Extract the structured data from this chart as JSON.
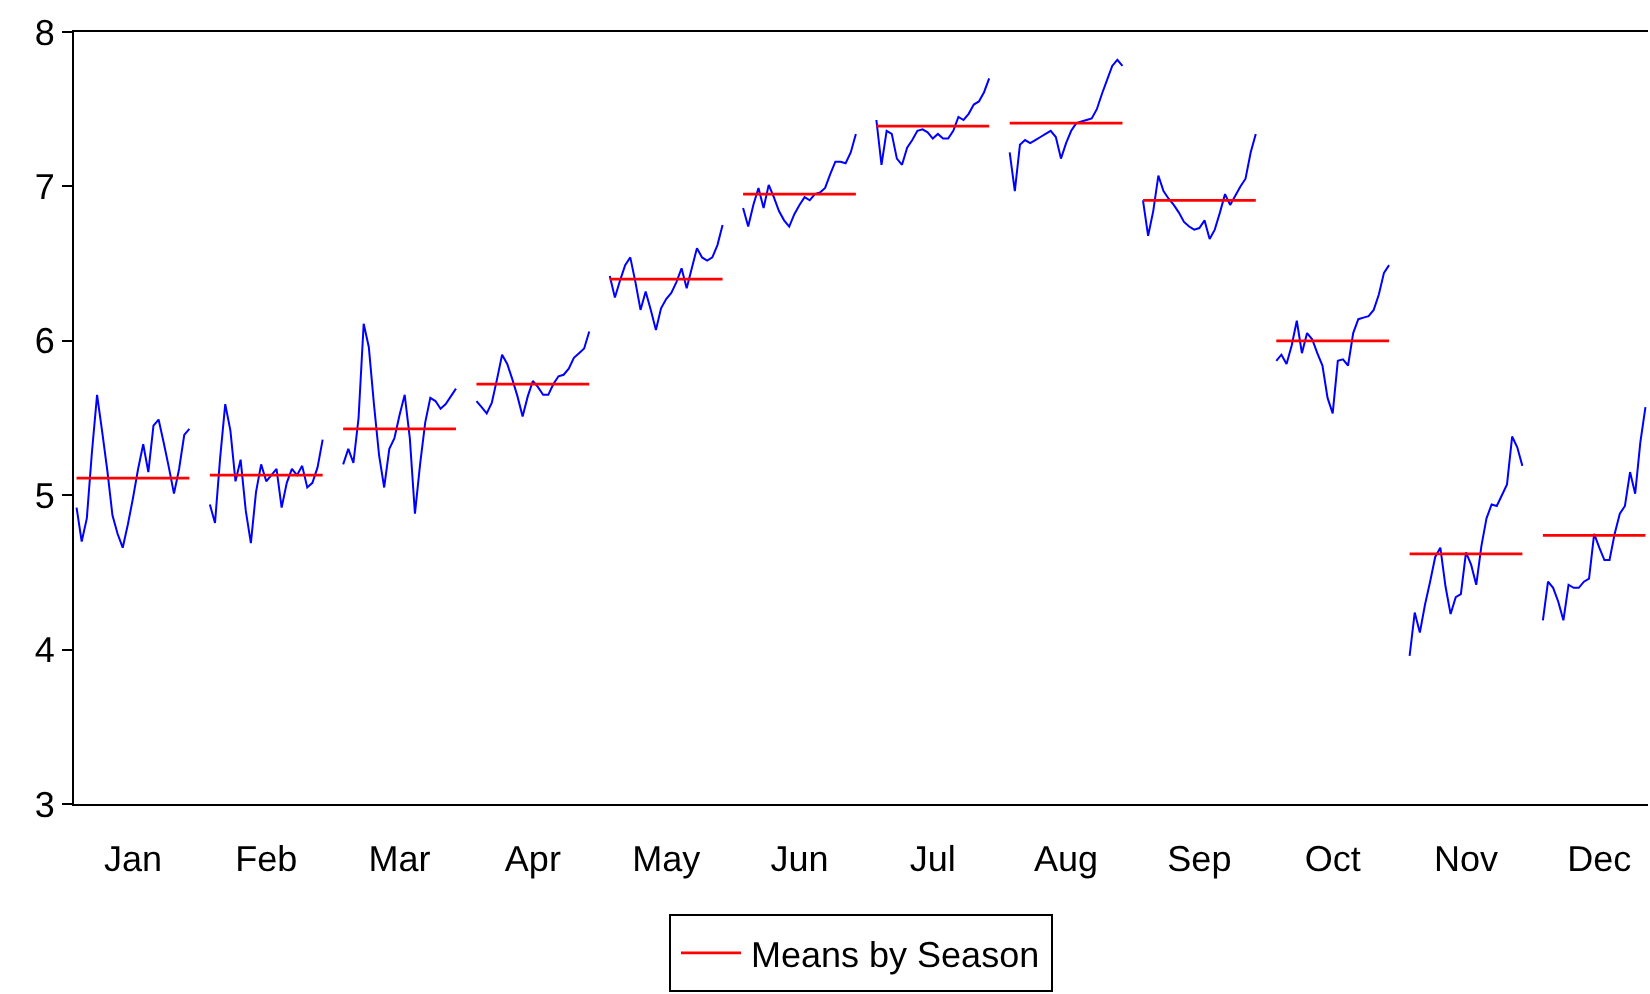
{
  "chart_data": {
    "type": "line",
    "categories": [
      null,
      null,
      null,
      null,
      null,
      null,
      null,
      null,
      null,
      null,
      null,
      "Jan",
      null,
      null,
      null,
      null,
      null,
      null,
      null,
      null,
      null,
      null,
      null,
      null,
      null,
      null,
      null,
      null,
      null,
      null,
      null,
      null,
      null,
      null,
      null,
      null,
      null,
      "Feb",
      null,
      null,
      null,
      null,
      null,
      null,
      null,
      null,
      null,
      null,
      null,
      null,
      null,
      null,
      null,
      null,
      null,
      null,
      null,
      null,
      null,
      null,
      null,
      null,
      null,
      "Mar",
      null,
      null,
      null,
      null,
      null,
      null,
      null,
      null,
      null,
      null,
      null,
      null,
      null,
      null,
      null,
      null,
      null,
      null,
      null,
      null,
      null,
      null,
      null,
      null,
      null,
      "Apr",
      null,
      null,
      null,
      null,
      null,
      null,
      null,
      null,
      null,
      null,
      null,
      null,
      null,
      null,
      null,
      null,
      null,
      null,
      null,
      null,
      null,
      null,
      null,
      null,
      null,
      "May",
      null,
      null,
      null,
      null,
      null,
      null,
      null,
      null,
      null,
      null,
      null,
      null,
      null,
      null,
      null,
      null,
      null,
      null,
      null,
      null,
      null,
      null,
      null,
      null,
      null,
      "Jun",
      null,
      null,
      null,
      null,
      null,
      null,
      null,
      null,
      null,
      null,
      null,
      null,
      null,
      null,
      null,
      null,
      null,
      null,
      null,
      null,
      null,
      null,
      null,
      null,
      null,
      "Jul",
      null,
      null,
      null,
      null,
      null,
      null,
      null,
      null,
      null,
      null,
      null,
      null,
      null,
      null,
      null,
      null,
      null,
      null,
      null,
      null,
      null,
      null,
      null,
      null,
      null,
      "Aug",
      null,
      null,
      null,
      null,
      null,
      null,
      null,
      null,
      null,
      null,
      null,
      null,
      null,
      null,
      null,
      null,
      null,
      null,
      null,
      null,
      null,
      null,
      null,
      null,
      null,
      "Sep",
      null,
      null,
      null,
      null,
      null,
      null,
      null,
      null,
      null,
      null,
      null,
      null,
      null,
      null,
      null,
      null,
      null,
      null,
      null,
      null,
      null,
      null,
      null,
      null,
      null,
      "Oct",
      null,
      null,
      null,
      null,
      null,
      null,
      null,
      null,
      null,
      null,
      null,
      null,
      null,
      null,
      null,
      null,
      null,
      null,
      null,
      null,
      null,
      null,
      null,
      null,
      null,
      "Nov",
      null,
      null,
      null,
      null,
      null,
      null,
      null,
      null,
      null,
      null,
      null,
      null,
      null,
      null,
      null,
      null,
      null,
      null,
      null,
      null,
      null,
      null,
      null,
      null,
      null,
      "Dec",
      null,
      null,
      null,
      null,
      null,
      null,
      null,
      null,
      null
    ],
    "ylim": [
      3,
      8
    ],
    "yticks": [
      3,
      4,
      5,
      6,
      7,
      8
    ],
    "legend": "bottom",
    "series": [
      {
        "color": "#0000ff",
        "values": [
          4.92,
          4.7,
          4.85,
          5.28,
          5.65,
          5.41,
          5.16,
          4.87,
          4.75,
          4.66,
          4.81,
          4.98,
          5.17,
          5.33,
          5.15,
          5.45,
          5.49,
          5.34,
          5.18,
          5.01,
          5.17,
          5.39,
          5.43,
          null,
          null,
          null,
          4.94,
          4.82,
          5.24,
          5.59,
          5.42,
          5.09,
          5.23,
          4.9,
          4.69,
          5.02,
          5.2,
          5.09,
          5.13,
          5.17,
          4.92,
          5.08,
          5.17,
          5.13,
          5.19,
          5.05,
          5.08,
          5.18,
          5.36,
          null,
          null,
          null,
          5.2,
          5.3,
          5.21,
          5.5,
          6.11,
          5.96,
          5.59,
          5.26,
          5.05,
          5.3,
          5.37,
          5.52,
          5.65,
          5.37,
          4.88,
          5.2,
          5.47,
          5.63,
          5.61,
          5.56,
          5.59,
          5.64,
          5.69,
          null,
          null,
          null,
          5.61,
          5.57,
          5.53,
          5.6,
          5.75,
          5.91,
          5.85,
          5.75,
          5.64,
          5.51,
          5.64,
          5.74,
          5.7,
          5.65,
          5.65,
          5.72,
          5.77,
          5.78,
          5.82,
          5.89,
          5.92,
          5.95,
          6.06,
          null,
          null,
          null,
          6.42,
          6.28,
          6.39,
          6.49,
          6.54,
          6.38,
          6.2,
          6.32,
          6.2,
          6.07,
          6.21,
          6.27,
          6.31,
          6.38,
          6.47,
          6.34,
          6.47,
          6.6,
          6.54,
          6.52,
          6.54,
          6.62,
          6.75,
          null,
          null,
          null,
          6.86,
          6.74,
          6.88,
          6.99,
          6.86,
          7.01,
          6.93,
          6.84,
          6.78,
          6.74,
          6.82,
          6.88,
          6.93,
          6.91,
          6.95,
          6.96,
          6.99,
          7.08,
          7.16,
          7.16,
          7.15,
          7.22,
          7.34,
          null,
          null,
          null,
          7.43,
          7.14,
          7.36,
          7.34,
          7.18,
          7.14,
          7.25,
          7.3,
          7.36,
          7.37,
          7.35,
          7.31,
          7.34,
          7.31,
          7.31,
          7.36,
          7.45,
          7.43,
          7.47,
          7.53,
          7.55,
          7.61,
          7.7,
          null,
          null,
          null,
          7.22,
          6.97,
          7.27,
          7.3,
          7.28,
          7.3,
          7.32,
          7.34,
          7.36,
          7.32,
          7.18,
          7.28,
          7.36,
          7.41,
          7.42,
          7.43,
          7.44,
          7.5,
          7.6,
          7.69,
          7.78,
          7.82,
          7.78,
          null,
          null,
          null,
          6.91,
          6.68,
          6.84,
          7.07,
          6.97,
          6.92,
          6.88,
          6.83,
          6.77,
          6.74,
          6.72,
          6.73,
          6.78,
          6.66,
          6.72,
          6.83,
          6.95,
          6.88,
          6.94,
          7.0,
          7.05,
          7.22,
          7.34,
          null,
          null,
          null,
          5.87,
          5.91,
          5.85,
          5.97,
          6.13,
          5.92,
          6.05,
          6.01,
          5.92,
          5.84,
          5.63,
          5.53,
          5.87,
          5.88,
          5.84,
          6.05,
          6.14,
          6.15,
          6.16,
          6.2,
          6.3,
          6.44,
          6.49,
          null,
          null,
          null,
          3.96,
          4.24,
          4.11,
          4.29,
          4.44,
          4.6,
          4.66,
          4.41,
          4.23,
          4.34,
          4.36,
          4.63,
          4.55,
          4.42,
          4.67,
          4.85,
          4.94,
          4.93,
          5.0,
          5.07,
          5.38,
          5.31,
          5.19,
          null,
          null,
          null,
          4.19,
          4.44,
          4.4,
          4.31,
          4.19,
          4.42,
          4.4,
          4.4,
          4.44,
          4.46,
          4.75,
          4.66,
          4.58,
          4.58,
          4.75,
          4.88,
          4.93,
          5.15,
          5.01,
          5.34,
          5.57
        ]
      },
      {
        "name": "Means by Season",
        "color": "#ff0000",
        "values": [
          5.11,
          5.11,
          5.11,
          5.11,
          5.11,
          5.11,
          5.11,
          5.11,
          5.11,
          5.11,
          5.11,
          5.11,
          5.11,
          5.11,
          5.11,
          5.11,
          5.11,
          5.11,
          5.11,
          5.11,
          5.11,
          5.11,
          5.11,
          null,
          null,
          null,
          5.13,
          5.13,
          5.13,
          5.13,
          5.13,
          5.13,
          5.13,
          5.13,
          5.13,
          5.13,
          5.13,
          5.13,
          5.13,
          5.13,
          5.13,
          5.13,
          5.13,
          5.13,
          5.13,
          5.13,
          5.13,
          5.13,
          5.13,
          null,
          null,
          null,
          5.43,
          5.43,
          5.43,
          5.43,
          5.43,
          5.43,
          5.43,
          5.43,
          5.43,
          5.43,
          5.43,
          5.43,
          5.43,
          5.43,
          5.43,
          5.43,
          5.43,
          5.43,
          5.43,
          5.43,
          5.43,
          5.43,
          5.43,
          null,
          null,
          null,
          5.72,
          5.72,
          5.72,
          5.72,
          5.72,
          5.72,
          5.72,
          5.72,
          5.72,
          5.72,
          5.72,
          5.72,
          5.72,
          5.72,
          5.72,
          5.72,
          5.72,
          5.72,
          5.72,
          5.72,
          5.72,
          5.72,
          5.72,
          null,
          null,
          null,
          6.4,
          6.4,
          6.4,
          6.4,
          6.4,
          6.4,
          6.4,
          6.4,
          6.4,
          6.4,
          6.4,
          6.4,
          6.4,
          6.4,
          6.4,
          6.4,
          6.4,
          6.4,
          6.4,
          6.4,
          6.4,
          6.4,
          6.4,
          null,
          null,
          null,
          6.95,
          6.95,
          6.95,
          6.95,
          6.95,
          6.95,
          6.95,
          6.95,
          6.95,
          6.95,
          6.95,
          6.95,
          6.95,
          6.95,
          6.95,
          6.95,
          6.95,
          6.95,
          6.95,
          6.95,
          6.95,
          6.95,
          6.95,
          null,
          null,
          null,
          7.39,
          7.39,
          7.39,
          7.39,
          7.39,
          7.39,
          7.39,
          7.39,
          7.39,
          7.39,
          7.39,
          7.39,
          7.39,
          7.39,
          7.39,
          7.39,
          7.39,
          7.39,
          7.39,
          7.39,
          7.39,
          7.39,
          7.39,
          null,
          null,
          null,
          7.41,
          7.41,
          7.41,
          7.41,
          7.41,
          7.41,
          7.41,
          7.41,
          7.41,
          7.41,
          7.41,
          7.41,
          7.41,
          7.41,
          7.41,
          7.41,
          7.41,
          7.41,
          7.41,
          7.41,
          7.41,
          7.41,
          7.41,
          null,
          null,
          null,
          6.91,
          6.91,
          6.91,
          6.91,
          6.91,
          6.91,
          6.91,
          6.91,
          6.91,
          6.91,
          6.91,
          6.91,
          6.91,
          6.91,
          6.91,
          6.91,
          6.91,
          6.91,
          6.91,
          6.91,
          6.91,
          6.91,
          6.91,
          null,
          null,
          null,
          6.0,
          6.0,
          6.0,
          6.0,
          6.0,
          6.0,
          6.0,
          6.0,
          6.0,
          6.0,
          6.0,
          6.0,
          6.0,
          6.0,
          6.0,
          6.0,
          6.0,
          6.0,
          6.0,
          6.0,
          6.0,
          6.0,
          6.0,
          null,
          null,
          null,
          4.62,
          4.62,
          4.62,
          4.62,
          4.62,
          4.62,
          4.62,
          4.62,
          4.62,
          4.62,
          4.62,
          4.62,
          4.62,
          4.62,
          4.62,
          4.62,
          4.62,
          4.62,
          4.62,
          4.62,
          4.62,
          4.62,
          4.62,
          null,
          null,
          null,
          4.74,
          4.74,
          4.74,
          4.74,
          4.74,
          4.74,
          4.74,
          4.74,
          4.74,
          4.74,
          4.74,
          4.74,
          4.74,
          4.74,
          4.74,
          4.74,
          4.74,
          4.74,
          4.74,
          4.74,
          4.74
        ]
      }
    ]
  }
}
